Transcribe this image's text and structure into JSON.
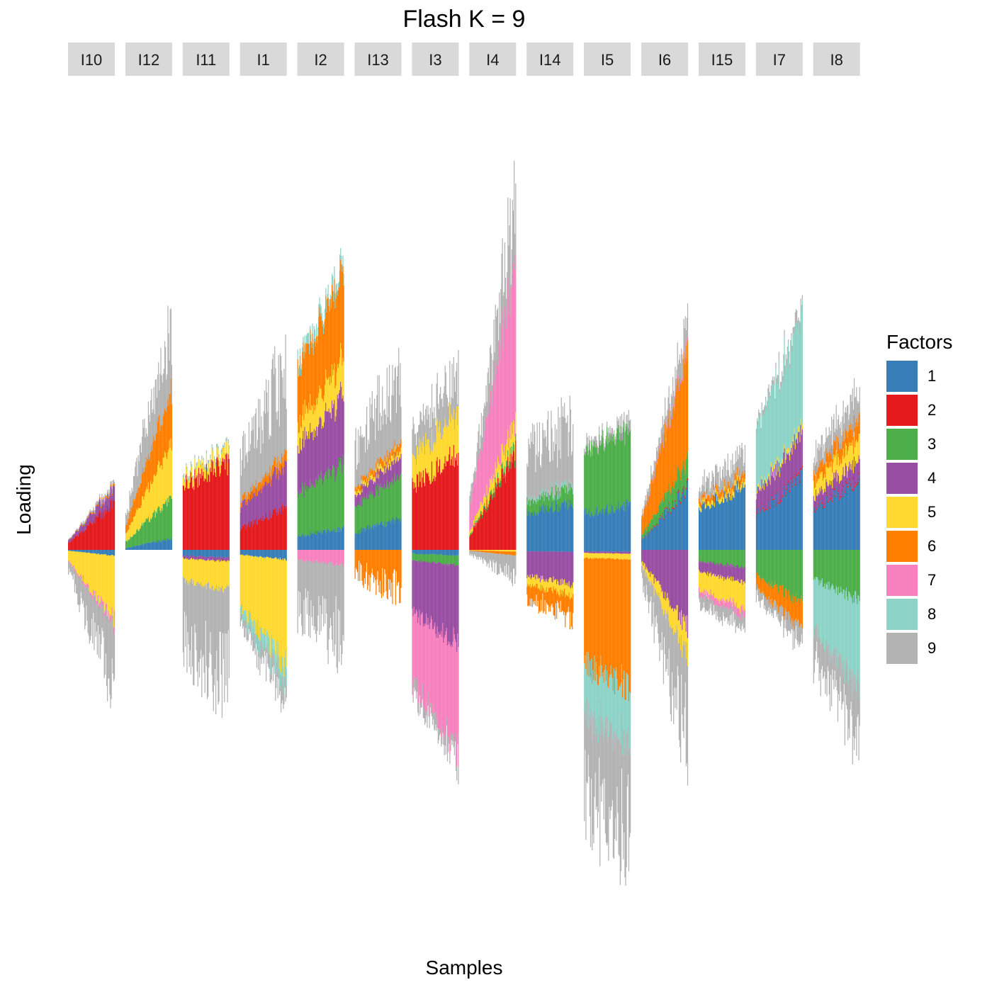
{
  "chart_data": {
    "type": "bar",
    "title": "Flash K = 9",
    "xlabel": "Samples",
    "ylabel": "Loading",
    "legend_title": "Factors",
    "legend_position": "right",
    "grid": false,
    "note": "Structure-style stacked bar chart; each facet is a group of many samples whose stacked factor loadings are shown as thin bars above (positive) and below (negative) zero. Values are approximate, in relative loading units read from the figure (no numeric axis shown).",
    "factors": [
      {
        "name": "1",
        "color": "#377eb8"
      },
      {
        "name": "2",
        "color": "#e41a1c"
      },
      {
        "name": "3",
        "color": "#4daf4a"
      },
      {
        "name": "4",
        "color": "#984ea3"
      },
      {
        "name": "5",
        "color": "#ffd92f"
      },
      {
        "name": "6",
        "color": "#ff7f00"
      },
      {
        "name": "7",
        "color": "#f781bf"
      },
      {
        "name": "8",
        "color": "#8dd3c7"
      },
      {
        "name": "9",
        "color": "#b3b3b3"
      }
    ],
    "ylim": [
      -1.75,
      2.25
    ],
    "panels": [
      {
        "label": "I10",
        "samples": 60,
        "trend": 1.0,
        "positive": {
          "2": 0.24,
          "4": 0.08,
          "6": 0.01,
          "9": 0.02
        },
        "negative": {
          "1": 0.03,
          "5": 0.33,
          "7": 0.03,
          "9": 0.35
        }
      },
      {
        "label": "I12",
        "samples": 60,
        "trend": 1.0,
        "positive": {
          "1": 0.06,
          "3": 0.21,
          "5": 0.28,
          "6": 0.28,
          "9": 0.4
        },
        "negative": {}
      },
      {
        "label": "I11",
        "samples": 60,
        "trend": 0.3,
        "positive": {
          "2": 0.45,
          "5": 0.06,
          "8": 0.01,
          "9": 0.01
        },
        "negative": {
          "1": 0.04,
          "4": 0.02,
          "5": 0.15,
          "9": 0.54
        }
      },
      {
        "label": "I1",
        "samples": 60,
        "trend": 0.6,
        "positive": {
          "2": 0.22,
          "4": 0.22,
          "6": 0.06,
          "9": 0.48
        },
        "negative": {
          "1": 0.05,
          "5": 0.55,
          "8": 0.1,
          "9": 0.12
        }
      },
      {
        "label": "I2",
        "samples": 60,
        "trend": 0.4,
        "positive": {
          "1": 0.11,
          "3": 0.33,
          "4": 0.36,
          "5": 0.18,
          "6": 0.44,
          "8": 0.06
        },
        "negative": {
          "7": 0.08,
          "9": 0.42
        }
      },
      {
        "label": "I13",
        "samples": 60,
        "trend": 0.5,
        "positive": {
          "1": 0.16,
          "3": 0.22,
          "4": 0.1,
          "5": 0.03,
          "6": 0.04,
          "9": 0.4
        },
        "negative": {
          "6": 0.22
        }
      },
      {
        "label": "I3",
        "samples": 60,
        "trend": 0.4,
        "positive": {
          "2": 0.5,
          "5": 0.22,
          "9": 0.22
        },
        "negative": {
          "1": 0.03,
          "4": 0.4,
          "3": 0.05,
          "7": 0.55,
          "9": 0.08
        }
      },
      {
        "label": "I4",
        "samples": 60,
        "trend": 1.0,
        "positive": {
          "2": 0.49,
          "3": 0.04,
          "5": 0.12,
          "7": 0.8,
          "9": 0.4
        },
        "negative": {
          "5": 0.01,
          "6": 0.02,
          "9": 0.12
        }
      },
      {
        "label": "I14",
        "samples": 60,
        "trend": 0.3,
        "positive": {
          "1": 0.25,
          "3": 0.08,
          "8": 0.02,
          "9": 0.35
        },
        "negative": {
          "1": 0.01,
          "4": 0.17,
          "5": 0.06,
          "6": 0.12
        }
      },
      {
        "label": "I5",
        "samples": 60,
        "trend": 0.2,
        "positive": {
          "1": 0.23,
          "3": 0.4,
          "9": 0.05
        },
        "negative": {
          "1": 0.01,
          "5": 0.03,
          "4": 0.01,
          "6": 0.65,
          "8": 0.3,
          "9": 0.55
        }
      },
      {
        "label": "I6",
        "samples": 60,
        "trend": 1.0,
        "positive": {
          "1": 0.32,
          "2": 0.01,
          "3": 0.14,
          "6": 0.55,
          "7": 0.02,
          "9": 0.15
        },
        "negative": {
          "4": 0.4,
          "5": 0.15,
          "9": 0.5
        }
      },
      {
        "label": "I15",
        "samples": 60,
        "trend": 0.4,
        "positive": {
          "1": 0.33,
          "6": 0.04,
          "5": 0.03,
          "9": 0.12
        },
        "negative": {
          "3": 0.09,
          "4": 0.08,
          "5": 0.14,
          "7": 0.04,
          "9": 0.08
        }
      },
      {
        "label": "I7",
        "samples": 60,
        "trend": 0.6,
        "positive": {
          "1": 0.37,
          "2": 0.01,
          "4": 0.2,
          "5": 0.03,
          "8": 0.6,
          "9": 0.05
        },
        "negative": {
          "3": 0.27,
          "6": 0.13,
          "9": 0.1
        }
      },
      {
        "label": "I8",
        "samples": 60,
        "trend": 0.5,
        "positive": {
          "1": 0.37,
          "2": 0.01,
          "4": 0.1,
          "5": 0.12,
          "6": 0.1,
          "9": 0.15
        },
        "negative": {
          "3": 0.26,
          "8": 0.45,
          "9": 0.3
        }
      }
    ]
  }
}
